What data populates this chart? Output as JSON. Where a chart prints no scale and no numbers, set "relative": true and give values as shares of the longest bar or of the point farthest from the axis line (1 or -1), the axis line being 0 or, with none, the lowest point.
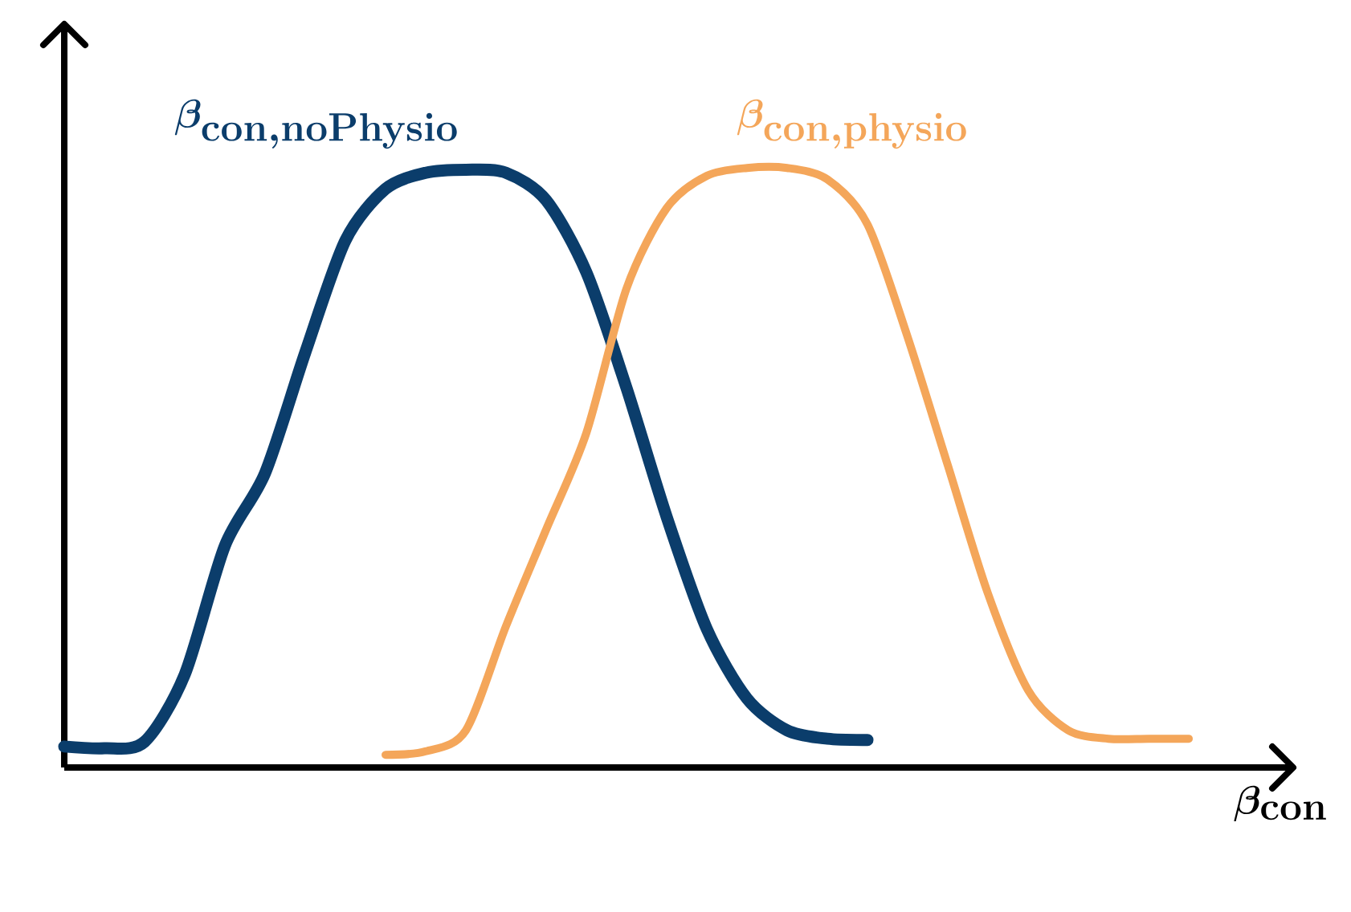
{
  "chart_data": {
    "type": "line",
    "relative": true,
    "xlabel": "\\beta_{\\mathrm{\\mathbf{con}}}",
    "categories": [
      null,
      null,
      null,
      null,
      null,
      null,
      null,
      null,
      null,
      null,
      null,
      null,
      null,
      null,
      null,
      null,
      null,
      null,
      null,
      null,
      null,
      null,
      null,
      null,
      null,
      null,
      null,
      null,
      null
    ],
    "series": [
      {
        "name": "\\beta_{\\mathrm{\\mathbf{con,noPhysio}}}",
        "color": "#0b3d6b",
        "values": [
          0.035,
          0.032,
          0.043,
          0.155,
          0.37,
          0.491,
          0.692,
          0.879,
          0.965,
          0.992,
          0.997,
          0.992,
          0.946,
          0.826,
          0.633,
          0.418,
          0.231,
          0.115,
          0.062,
          0.048,
          0.046,
          null,
          null,
          null,
          null,
          null,
          null,
          null,
          null
        ]
      },
      {
        "name": "\\beta_{\\mathrm{\\mathbf{con,physio}}}",
        "color": "#f4a65a",
        "values": [
          null,
          null,
          null,
          null,
          null,
          null,
          null,
          null,
          0.021,
          0.027,
          0.062,
          0.236,
          0.397,
          0.558,
          0.799,
          0.933,
          0.987,
          1,
          1,
          0.981,
          0.906,
          0.718,
          0.504,
          0.29,
          0.129,
          0.062,
          0.048,
          0.048,
          0.048
        ]
      }
    ]
  }
}
